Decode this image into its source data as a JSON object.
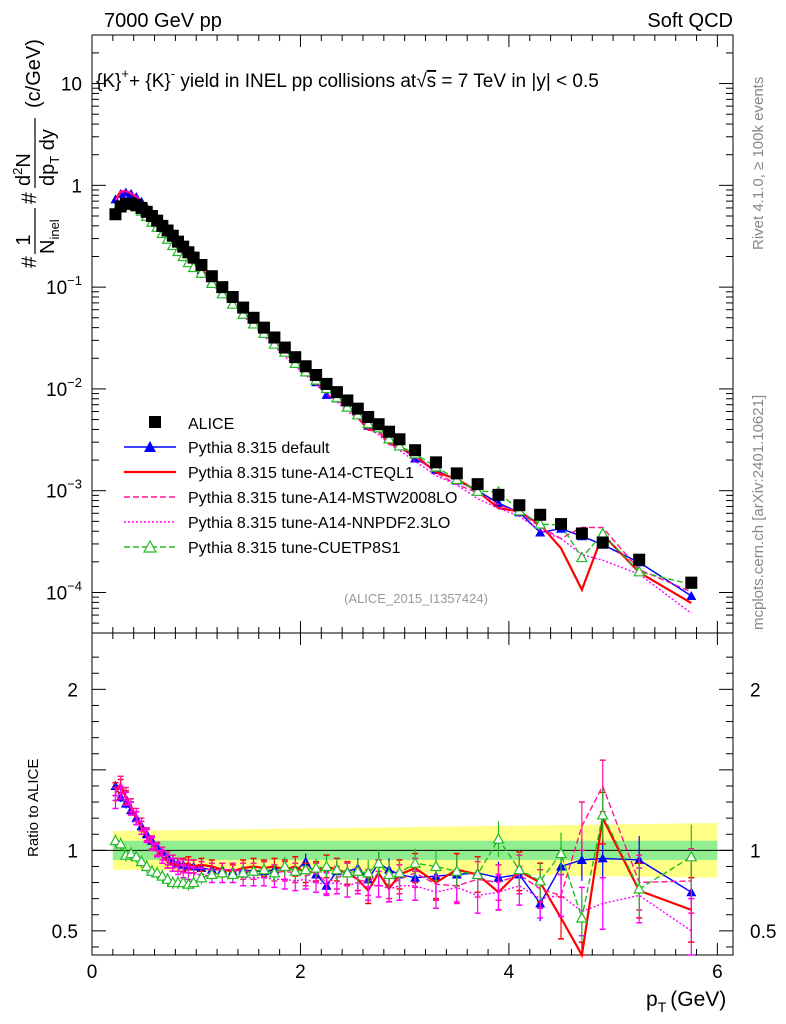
{
  "header": {
    "left": "7000 GeV pp",
    "right": "Soft QCD"
  },
  "side": {
    "rivet": "Rivet 4.1.0, ≥ 100k events",
    "mcplots": "mcplots.cern.ch [arXiv:2401.10621]"
  },
  "chart_data": {
    "type": "line",
    "title": "{K}⁺+ {K}⁻ yield in INEL pp collisions at √s = 7 TeV in |y| < 0.5",
    "title_parts": {
      "a": "{K}",
      "b": "+",
      "c": "+ {K}",
      "d": "-",
      "e": " yield in INEL pp collisions at",
      "f": "s",
      "g": " =  7 TeV in |y| < 0.5"
    },
    "ylabel": "#1/N_inel #d²N/dp_T dy (c/GeV)",
    "ylabel_parts": {
      "hash": "#",
      "one": "1",
      "n": "N",
      "inel": "inel",
      "d2n": "d",
      "sq": "2",
      "nn": "N",
      "dp": "dp",
      "t": "T",
      "dy": " dy",
      "unit": "(c/GeV)"
    },
    "xlabel": "p_T (GeV)",
    "xlabel_parts": {
      "p": "p",
      "t": "T",
      "unit": "(GeV)"
    },
    "ratio_ylabel": "Ratio to ALICE",
    "watermark": "(ALICE_2015_I1357424)",
    "xlim": [
      0,
      6.15
    ],
    "ylim": [
      4e-05,
      30
    ],
    "ratio_ylim": [
      0.35,
      2.35
    ],
    "x_ticks": [
      0,
      2,
      4,
      6
    ],
    "y_ticks": [
      {
        "v": 10,
        "base": "10",
        "exp": ""
      },
      {
        "v": 1,
        "base": "1",
        "exp": ""
      },
      {
        "v": 0.1,
        "base": "10",
        "exp": "−1"
      },
      {
        "v": 0.01,
        "base": "10",
        "exp": "−2"
      },
      {
        "v": 0.001,
        "base": "10",
        "exp": "−3"
      },
      {
        "v": 0.0001,
        "base": "10",
        "exp": "−4"
      }
    ],
    "ratio_ticks": [
      {
        "v": 0.5,
        "label": "0.5"
      },
      {
        "v": 1,
        "label": "1"
      },
      {
        "v": 2,
        "label": "2"
      }
    ],
    "data": {
      "name": "ALICE",
      "x": [
        0.225,
        0.275,
        0.325,
        0.375,
        0.425,
        0.475,
        0.525,
        0.575,
        0.625,
        0.675,
        0.725,
        0.775,
        0.825,
        0.875,
        0.925,
        0.975,
        1.05,
        1.15,
        1.25,
        1.35,
        1.45,
        1.55,
        1.65,
        1.75,
        1.85,
        1.95,
        2.05,
        2.15,
        2.25,
        2.35,
        2.45,
        2.55,
        2.65,
        2.75,
        2.85,
        2.95,
        3.1,
        3.3,
        3.5,
        3.7,
        3.9,
        4.1,
        4.3,
        4.5,
        4.7,
        4.9,
        5.25,
        5.75
      ],
      "y": [
        0.52,
        0.62,
        0.66,
        0.66,
        0.64,
        0.6,
        0.55,
        0.5,
        0.45,
        0.4,
        0.36,
        0.32,
        0.28,
        0.25,
        0.22,
        0.195,
        0.165,
        0.128,
        0.1,
        0.08,
        0.063,
        0.05,
        0.04,
        0.032,
        0.0255,
        0.0205,
        0.0167,
        0.0137,
        0.0112,
        0.0093,
        0.0077,
        0.0064,
        0.0053,
        0.0045,
        0.0038,
        0.0032,
        0.0025,
        0.0019,
        0.00148,
        0.00116,
        0.00091,
        0.00072,
        0.00058,
        0.00047,
        0.00038,
        0.00031,
        0.00021,
        0.000125
      ],
      "band_inner": [
        0.94,
        1.06
      ],
      "band_outer_start": [
        0.88,
        1.12
      ],
      "band_outer_end": [
        0.83,
        1.17
      ]
    },
    "series": [
      {
        "name": "Pythia 8.315 default",
        "color": "#0000ff",
        "style": "solid",
        "marker": "triangle",
        "ratio": [
          1.4,
          1.33,
          1.29,
          1.25,
          1.2,
          1.15,
          1.1,
          1.06,
          1.02,
          0.99,
          0.96,
          0.93,
          0.92,
          0.91,
          0.9,
          0.9,
          0.89,
          0.88,
          0.88,
          0.87,
          0.88,
          0.87,
          0.87,
          0.88,
          0.9,
          0.87,
          0.93,
          0.85,
          0.78,
          0.87,
          0.87,
          0.89,
          0.82,
          0.92,
          0.88,
          0.85,
          0.83,
          0.84,
          0.85,
          0.86,
          0.83,
          0.85,
          0.67,
          0.9,
          0.94,
          0.95,
          0.94,
          0.74
        ],
        "err": [
          0.03,
          0.03,
          0.03,
          0.03,
          0.03,
          0.03,
          0.03,
          0.03,
          0.03,
          0.03,
          0.03,
          0.03,
          0.03,
          0.03,
          0.03,
          0.03,
          0.03,
          0.03,
          0.03,
          0.03,
          0.04,
          0.04,
          0.04,
          0.04,
          0.05,
          0.05,
          0.05,
          0.05,
          0.06,
          0.06,
          0.06,
          0.06,
          0.07,
          0.07,
          0.07,
          0.08,
          0.08,
          0.09,
          0.09,
          0.1,
          0.1,
          0.11,
          0.11,
          0.12,
          0.13,
          0.14,
          0.15,
          0.18
        ]
      },
      {
        "name": "Pythia 8.315 tune-A14-CTEQL1",
        "color": "#ff0000",
        "style": "solid",
        "marker": "none",
        "ratio": [
          1.38,
          1.4,
          1.33,
          1.26,
          1.2,
          1.14,
          1.09,
          1.04,
          1.0,
          0.96,
          0.93,
          0.91,
          0.91,
          0.91,
          0.92,
          0.9,
          0.91,
          0.9,
          0.88,
          0.87,
          0.89,
          0.9,
          0.89,
          0.9,
          0.88,
          0.9,
          0.86,
          0.87,
          0.9,
          0.88,
          0.86,
          0.82,
          0.75,
          0.86,
          0.76,
          0.85,
          0.89,
          0.8,
          0.88,
          0.85,
          0.74,
          0.87,
          0.8,
          0.58,
          0.28,
          1.2,
          0.75,
          0.63
        ],
        "err": [
          0.04,
          0.04,
          0.04,
          0.04,
          0.04,
          0.04,
          0.04,
          0.04,
          0.04,
          0.04,
          0.04,
          0.04,
          0.04,
          0.04,
          0.04,
          0.04,
          0.04,
          0.04,
          0.04,
          0.04,
          0.05,
          0.05,
          0.05,
          0.05,
          0.06,
          0.06,
          0.06,
          0.06,
          0.07,
          0.07,
          0.07,
          0.07,
          0.08,
          0.08,
          0.08,
          0.09,
          0.09,
          0.1,
          0.1,
          0.11,
          0.11,
          0.12,
          0.12,
          0.13,
          0.15,
          0.16,
          0.17,
          0.2
        ]
      },
      {
        "name": "Pythia 8.315 tune-A14-MSTW2008LO",
        "color": "#ff1493",
        "style": "dashed",
        "marker": "none",
        "ratio": [
          1.35,
          1.42,
          1.35,
          1.28,
          1.22,
          1.16,
          1.1,
          1.05,
          1.01,
          0.98,
          0.95,
          0.93,
          0.91,
          0.9,
          0.9,
          0.9,
          0.89,
          0.88,
          0.88,
          0.88,
          0.87,
          0.87,
          0.88,
          0.86,
          0.87,
          0.86,
          0.84,
          0.86,
          0.8,
          0.83,
          0.85,
          0.82,
          0.8,
          0.86,
          0.78,
          0.82,
          0.86,
          0.79,
          0.78,
          0.82,
          0.8,
          0.85,
          0.76,
          0.72,
          1.15,
          1.4,
          0.8,
          0.81
        ],
        "err": [
          0.04,
          0.04,
          0.04,
          0.04,
          0.04,
          0.04,
          0.04,
          0.04,
          0.04,
          0.04,
          0.04,
          0.04,
          0.04,
          0.04,
          0.04,
          0.04,
          0.04,
          0.04,
          0.04,
          0.04,
          0.05,
          0.05,
          0.05,
          0.05,
          0.06,
          0.06,
          0.06,
          0.06,
          0.07,
          0.07,
          0.07,
          0.07,
          0.08,
          0.08,
          0.08,
          0.09,
          0.09,
          0.1,
          0.1,
          0.11,
          0.11,
          0.12,
          0.12,
          0.13,
          0.15,
          0.16,
          0.17,
          0.2
        ]
      },
      {
        "name": "Pythia 8.315 tune-A14-NNPDF2.3LO",
        "color": "#ff00ff",
        "style": "dotted",
        "marker": "none",
        "ratio": [
          1.3,
          1.36,
          1.32,
          1.26,
          1.2,
          1.14,
          1.09,
          1.04,
          1.0,
          0.96,
          0.93,
          0.91,
          0.89,
          0.87,
          0.86,
          0.85,
          0.85,
          0.84,
          0.84,
          0.84,
          0.83,
          0.83,
          0.83,
          0.82,
          0.82,
          0.81,
          0.82,
          0.8,
          0.79,
          0.8,
          0.78,
          0.8,
          0.77,
          0.79,
          0.76,
          0.78,
          0.78,
          0.74,
          0.77,
          0.72,
          0.74,
          0.78,
          0.7,
          0.72,
          0.62,
          0.67,
          0.72,
          0.5
        ],
        "err": [
          0.04,
          0.04,
          0.04,
          0.04,
          0.04,
          0.04,
          0.04,
          0.04,
          0.04,
          0.04,
          0.04,
          0.04,
          0.04,
          0.04,
          0.04,
          0.04,
          0.04,
          0.04,
          0.04,
          0.04,
          0.05,
          0.05,
          0.05,
          0.05,
          0.06,
          0.06,
          0.06,
          0.06,
          0.07,
          0.07,
          0.07,
          0.07,
          0.08,
          0.08,
          0.08,
          0.09,
          0.09,
          0.1,
          0.1,
          0.11,
          0.11,
          0.12,
          0.12,
          0.13,
          0.15,
          0.16,
          0.17,
          0.2
        ]
      },
      {
        "name": "Pythia 8.315 tune-CUETP8S1",
        "color": "#22bb22",
        "style": "dashed",
        "marker": "open-triangle",
        "ratio": [
          1.06,
          1.04,
          0.97,
          0.98,
          0.96,
          0.93,
          0.9,
          0.87,
          0.86,
          0.84,
          0.82,
          0.8,
          0.8,
          0.8,
          0.79,
          0.8,
          0.83,
          0.85,
          0.86,
          0.85,
          0.86,
          0.87,
          0.88,
          0.86,
          0.9,
          0.87,
          0.88,
          0.89,
          0.9,
          0.88,
          0.86,
          0.87,
          0.86,
          0.92,
          0.85,
          0.86,
          0.92,
          0.9,
          0.87,
          0.85,
          1.07,
          0.88,
          0.81,
          0.98,
          0.58,
          1.22,
          0.76,
          0.96
        ],
        "err": [
          0.04,
          0.04,
          0.04,
          0.04,
          0.04,
          0.04,
          0.04,
          0.04,
          0.04,
          0.04,
          0.04,
          0.04,
          0.04,
          0.04,
          0.04,
          0.04,
          0.04,
          0.04,
          0.04,
          0.04,
          0.05,
          0.05,
          0.05,
          0.05,
          0.06,
          0.06,
          0.06,
          0.06,
          0.07,
          0.07,
          0.07,
          0.07,
          0.08,
          0.08,
          0.08,
          0.09,
          0.09,
          0.1,
          0.1,
          0.11,
          0.11,
          0.12,
          0.12,
          0.13,
          0.15,
          0.16,
          0.17,
          0.2
        ]
      }
    ]
  }
}
